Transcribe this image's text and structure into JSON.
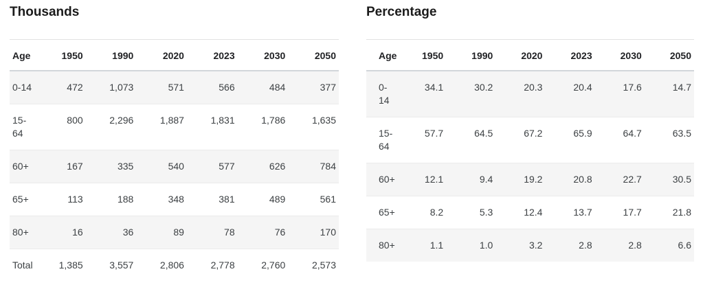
{
  "tables": [
    {
      "title": "Thousands",
      "columns": [
        "Age",
        "1950",
        "1990",
        "2020",
        "2023",
        "2030",
        "2050"
      ],
      "rows": [
        {
          "age": "0-14",
          "values": [
            "472",
            "1,073",
            "571",
            "566",
            "484",
            "377"
          ]
        },
        {
          "age": "15-64",
          "values": [
            "800",
            "2,296",
            "1,887",
            "1,831",
            "1,786",
            "1,635"
          ]
        },
        {
          "age": "60+",
          "values": [
            "167",
            "335",
            "540",
            "577",
            "626",
            "784"
          ]
        },
        {
          "age": "65+",
          "values": [
            "113",
            "188",
            "348",
            "381",
            "489",
            "561"
          ]
        },
        {
          "age": "80+",
          "values": [
            "16",
            "36",
            "89",
            "78",
            "76",
            "170"
          ]
        },
        {
          "age": "Total",
          "values": [
            "1,385",
            "3,557",
            "2,806",
            "2,778",
            "2,760",
            "2,573"
          ]
        }
      ]
    },
    {
      "title": "Percentage",
      "columns": [
        "Age",
        "1950",
        "1990",
        "2020",
        "2023",
        "2030",
        "2050"
      ],
      "rows": [
        {
          "age": "0-14",
          "values": [
            "34.1",
            "30.2",
            "20.3",
            "20.4",
            "17.6",
            "14.7"
          ]
        },
        {
          "age": "15-64",
          "values": [
            "57.7",
            "64.5",
            "67.2",
            "65.9",
            "64.7",
            "63.5"
          ]
        },
        {
          "age": "60+",
          "values": [
            "12.1",
            "9.4",
            "19.2",
            "20.8",
            "22.7",
            "30.5"
          ]
        },
        {
          "age": "65+",
          "values": [
            "8.2",
            "5.3",
            "12.4",
            "13.7",
            "17.7",
            "21.8"
          ]
        },
        {
          "age": "80+",
          "values": [
            "1.1",
            "1.0",
            "3.2",
            "2.8",
            "2.8",
            "6.6"
          ]
        }
      ]
    }
  ],
  "colors": {
    "title_text": "#1b1b1b",
    "header_text": "#202124",
    "cell_text": "#3c4043",
    "row_shade": "#f5f5f5",
    "table_top_border": "#e1e1e1",
    "header_bottom_border": "#d2d6da",
    "row_border": "#ebebeb"
  },
  "chart_data": [
    {
      "type": "table",
      "title": "Thousands",
      "columns": [
        "Age",
        "1950",
        "1990",
        "2020",
        "2023",
        "2030",
        "2050"
      ],
      "rows": [
        [
          "0-14",
          472,
          1073,
          571,
          566,
          484,
          377
        ],
        [
          "15-64",
          800,
          2296,
          1887,
          1831,
          1786,
          1635
        ],
        [
          "60+",
          167,
          335,
          540,
          577,
          626,
          784
        ],
        [
          "65+",
          113,
          188,
          348,
          381,
          489,
          561
        ],
        [
          "80+",
          16,
          36,
          89,
          78,
          76,
          170
        ],
        [
          "Total",
          1385,
          3557,
          2806,
          2778,
          2760,
          2573
        ]
      ],
      "layout_hints": {
        "zebra_striping": "odd rows shaded",
        "age_column_align": "left",
        "year_columns_align": "right"
      }
    },
    {
      "type": "table",
      "title": "Percentage",
      "columns": [
        "Age",
        "1950",
        "1990",
        "2020",
        "2023",
        "2030",
        "2050"
      ],
      "rows": [
        [
          "0-14",
          34.1,
          30.2,
          20.3,
          20.4,
          17.6,
          14.7
        ],
        [
          "15-64",
          57.7,
          64.5,
          67.2,
          65.9,
          64.7,
          63.5
        ],
        [
          "60+",
          12.1,
          9.4,
          19.2,
          20.8,
          22.7,
          30.5
        ],
        [
          "65+",
          8.2,
          5.3,
          12.4,
          13.7,
          17.7,
          21.8
        ],
        [
          "80+",
          1.1,
          1.0,
          3.2,
          2.8,
          2.8,
          6.6
        ]
      ],
      "layout_hints": {
        "zebra_striping": "odd rows shaded",
        "age_column_align": "left",
        "year_columns_align": "right"
      }
    }
  ]
}
